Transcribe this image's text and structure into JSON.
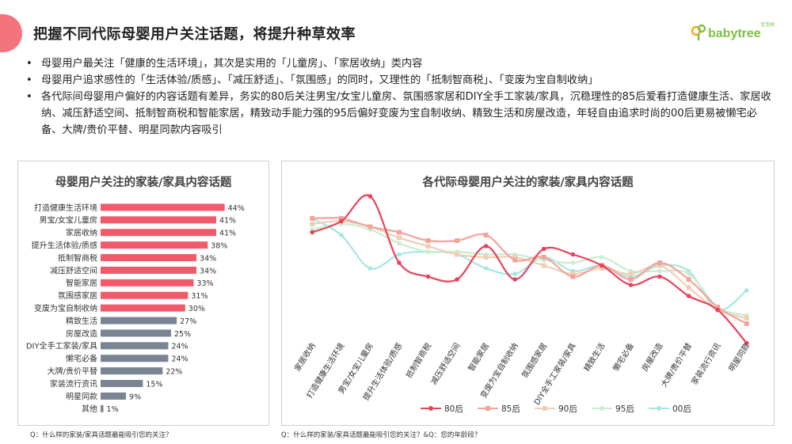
{
  "header": {
    "title": "把握不同代际母婴用户关注话题，将提升种草效率",
    "logo_text": "babytree",
    "logo_badge": "宝宝树"
  },
  "bullets": [
    "母婴用户最关注「健康的生活环境」，其次是实用的「儿童房」、「家居收纳」类内容",
    "母婴用户追求感性的「生活体验/质感」、「减压舒适」、「氛围感」的同时，又理性的「抵制智商税」、「变废为宝自制收纳」",
    "各代际间母婴用户偏好的内容话题有差异，务实的80后关注男宝/女宝儿童房、氛围感家居和DIY全手工家装/家具，沉稳理性的85后爱看打造健康生活、家居收纳、减压舒适空间、抵制智商税和智能家居，精致动手能力强的95后偏好变废为宝自制收纳、精致生活和房屋改造，年轻自由追求时尚的00后更易被懒宅必备、大牌/贵价平替、明星同款内容吸引"
  ],
  "footnotes": {
    "left": "Q：什么样的家装/家具话题最能吸引您的关注？",
    "right": "Q：什么样的家装/家具话题最能吸引您的关注？&Q：您的年龄段？"
  },
  "colors": {
    "accent": "#f4747e",
    "bar_highlight": "#f15a6b",
    "bar_normal": "#7a8493",
    "series": [
      "#e8435a",
      "#f2a39a",
      "#efcfb4",
      "#c9ecd1",
      "#a6e6e3"
    ]
  },
  "chart_data": [
    {
      "type": "bar",
      "orientation": "horizontal",
      "title": "母婴用户关注的家装/家具内容话题",
      "categories": [
        "打造健康生活环境",
        "男宝/女宝儿童房",
        "家居收纳",
        "提升生活体验/质感",
        "抵制智商税",
        "减压舒适空间",
        "智能家居",
        "氛围感家居",
        "变废为宝自制收纳",
        "精致生活",
        "房屋改造",
        "DIY全手工家装/家具",
        "懒宅必备",
        "大牌/贵价平替",
        "家装流行资讯",
        "明星同款",
        "其他"
      ],
      "values": [
        44,
        41,
        41,
        38,
        34,
        34,
        33,
        31,
        30,
        27,
        25,
        24,
        24,
        22,
        15,
        9,
        1
      ],
      "value_labels": [
        "44%",
        "41%",
        "41%",
        "38%",
        "34%",
        "34%",
        "33%",
        "31%",
        "30%",
        "27%",
        "25%",
        "24%",
        "24%",
        "22%",
        "15%",
        "9%",
        "1%"
      ],
      "highlight_top": 9,
      "xlim": [
        0,
        50
      ],
      "grid": false
    },
    {
      "type": "line",
      "smooth": true,
      "title": "各代际母婴用户关注的家装/家具内容话题",
      "categories": [
        "家居收纳",
        "打造健康生活环境",
        "男宝/女宝儿童房",
        "提升生活体验/质感",
        "抵制智商税",
        "减压舒适空间",
        "智能家居",
        "变废为宝自制收纳",
        "氛围感家居",
        "DIY全手工家装/家具",
        "精致生活",
        "懒宅必备",
        "房屋改造",
        "大牌/贵价平替",
        "家装流行资讯",
        "明星同款"
      ],
      "series": [
        {
          "name": "80后",
          "values": [
            43,
            47,
            56,
            32,
            27,
            26,
            38,
            26,
            37,
            35,
            31,
            24,
            27,
            20,
            15,
            3
          ]
        },
        {
          "name": "85后",
          "values": [
            48,
            48,
            45,
            43,
            40,
            40,
            42,
            33,
            34,
            27,
            31,
            26,
            32,
            26,
            16,
            10
          ]
        },
        {
          "name": "90后",
          "values": [
            46,
            47,
            45,
            41,
            38,
            35,
            34,
            34,
            31,
            28,
            30,
            28,
            31,
            23,
            15,
            12
          ]
        },
        {
          "name": "95后",
          "values": [
            44,
            46,
            44,
            39,
            36,
            36,
            35,
            35,
            33,
            32,
            34,
            29,
            29,
            28,
            16,
            13
          ]
        },
        {
          "name": "00后",
          "values": [
            48,
            42,
            30,
            35,
            36,
            35,
            30,
            28,
            34,
            29,
            31,
            27,
            31,
            29,
            15,
            22
          ]
        }
      ],
      "ylim": [
        0,
        60
      ],
      "legend": "bottom",
      "grid": false
    }
  ]
}
